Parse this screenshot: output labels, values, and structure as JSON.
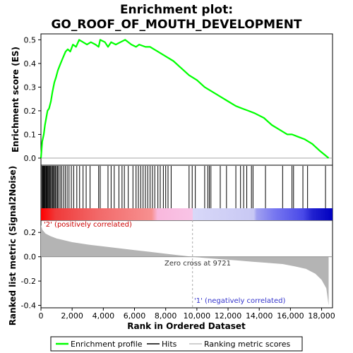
{
  "chart_data": {
    "type": "line",
    "title_line1": "Enrichment plot:",
    "title_line2": "GO_ROOF_OF_MOUTH_DEVELOPMENT",
    "top_ylabel": "Enrichment score (ES)",
    "bottom_ylabel": "Ranked list metric (Signal2Noise)",
    "xlabel": "Rank in Ordered Dataset",
    "xlim": [
      0,
      18700
    ],
    "x_ticks": [
      "0",
      "2,000",
      "4,000",
      "6,000",
      "8,000",
      "10,000",
      "12,000",
      "14,000",
      "16,000",
      "18,000"
    ],
    "x_tick_values": [
      0,
      2000,
      4000,
      6000,
      8000,
      10000,
      12000,
      14000,
      16000,
      18000
    ],
    "es_ylim": [
      -0.03,
      0.525
    ],
    "es_ticks": [
      "0.0",
      "0.1",
      "0.2",
      "0.3",
      "0.4",
      "0.5"
    ],
    "es_tick_values": [
      0.0,
      0.1,
      0.2,
      0.3,
      0.4,
      0.5
    ],
    "metric_ylim": [
      -0.42,
      0.3
    ],
    "metric_ticks": [
      "0.2",
      "0.0",
      "-0.2",
      "-0.4"
    ],
    "metric_tick_values": [
      0.2,
      0.0,
      -0.2,
      -0.4
    ],
    "es_line_color": "#00ff00",
    "enrichment_profile": [
      [
        0,
        0.0
      ],
      [
        80,
        0.07
      ],
      [
        180,
        0.1
      ],
      [
        260,
        0.14
      ],
      [
        340,
        0.17
      ],
      [
        420,
        0.2
      ],
      [
        520,
        0.21
      ],
      [
        640,
        0.24
      ],
      [
        740,
        0.28
      ],
      [
        860,
        0.32
      ],
      [
        960,
        0.34
      ],
      [
        1080,
        0.37
      ],
      [
        1200,
        0.39
      ],
      [
        1320,
        0.41
      ],
      [
        1450,
        0.43
      ],
      [
        1580,
        0.45
      ],
      [
        1720,
        0.46
      ],
      [
        1880,
        0.45
      ],
      [
        2050,
        0.48
      ],
      [
        2250,
        0.47
      ],
      [
        2450,
        0.5
      ],
      [
        2700,
        0.49
      ],
      [
        2950,
        0.48
      ],
      [
        3200,
        0.49
      ],
      [
        3500,
        0.48
      ],
      [
        3700,
        0.47
      ],
      [
        3800,
        0.5
      ],
      [
        4100,
        0.49
      ],
      [
        4300,
        0.47
      ],
      [
        4500,
        0.49
      ],
      [
        4800,
        0.48
      ],
      [
        5100,
        0.49
      ],
      [
        5400,
        0.5
      ],
      [
        5800,
        0.48
      ],
      [
        6100,
        0.47
      ],
      [
        6300,
        0.48
      ],
      [
        6700,
        0.47
      ],
      [
        7000,
        0.47
      ],
      [
        7500,
        0.45
      ],
      [
        8000,
        0.43
      ],
      [
        8500,
        0.41
      ],
      [
        9000,
        0.38
      ],
      [
        9500,
        0.35
      ],
      [
        10000,
        0.33
      ],
      [
        10500,
        0.3
      ],
      [
        11000,
        0.28
      ],
      [
        11500,
        0.26
      ],
      [
        12000,
        0.24
      ],
      [
        12500,
        0.22
      ],
      [
        12900,
        0.21
      ],
      [
        13300,
        0.2
      ],
      [
        13700,
        0.19
      ],
      [
        14300,
        0.17
      ],
      [
        14800,
        0.14
      ],
      [
        15300,
        0.12
      ],
      [
        15800,
        0.1
      ],
      [
        16100,
        0.1
      ],
      [
        16500,
        0.09
      ],
      [
        16900,
        0.08
      ],
      [
        17400,
        0.06
      ],
      [
        17900,
        0.03
      ],
      [
        18450,
        0.0
      ]
    ],
    "hits": [
      60,
      110,
      160,
      200,
      240,
      280,
      330,
      370,
      410,
      460,
      510,
      560,
      620,
      680,
      740,
      800,
      860,
      920,
      990,
      1060,
      1130,
      1230,
      1330,
      1450,
      1560,
      1680,
      1800,
      1950,
      2100,
      2300,
      2480,
      2700,
      2900,
      3150,
      3700,
      3800,
      4300,
      4500,
      4700,
      5000,
      5200,
      5350,
      5600,
      5900,
      6100,
      6250,
      6400,
      6550,
      6700,
      6850,
      7000,
      7150,
      7300,
      7500,
      7650,
      7850,
      8000,
      8150,
      8350,
      9500,
      9700,
      9900,
      10500,
      10700,
      10800,
      10900,
      11500,
      11900,
      12500,
      12800,
      13000,
      13200,
      13500,
      13600,
      14400,
      15500,
      16100,
      16200,
      16800,
      17100,
      18250
    ],
    "zero_cross_label": "Zero cross at 9721",
    "zero_cross": 9721,
    "pos_label": "'2' (positively correlated)",
    "neg_label": "'1' (negatively correlated)",
    "metric_curve": [
      [
        0,
        0.26
      ],
      [
        100,
        0.22
      ],
      [
        300,
        0.19
      ],
      [
        600,
        0.17
      ],
      [
        1000,
        0.15
      ],
      [
        2000,
        0.12
      ],
      [
        3000,
        0.1
      ],
      [
        4000,
        0.085
      ],
      [
        5000,
        0.07
      ],
      [
        6000,
        0.055
      ],
      [
        7000,
        0.04
      ],
      [
        8000,
        0.025
      ],
      [
        9000,
        0.01
      ],
      [
        9721,
        0.0
      ],
      [
        10500,
        -0.01
      ],
      [
        11500,
        -0.02
      ],
      [
        12500,
        -0.03
      ],
      [
        13500,
        -0.04
      ],
      [
        14500,
        -0.05
      ],
      [
        15500,
        -0.06
      ],
      [
        16300,
        -0.08
      ],
      [
        17000,
        -0.1
      ],
      [
        17600,
        -0.14
      ],
      [
        18000,
        -0.19
      ],
      [
        18300,
        -0.26
      ],
      [
        18450,
        -0.4
      ]
    ],
    "legend": [
      "Enrichment profile",
      "Hits",
      "Ranking metric scores"
    ]
  }
}
